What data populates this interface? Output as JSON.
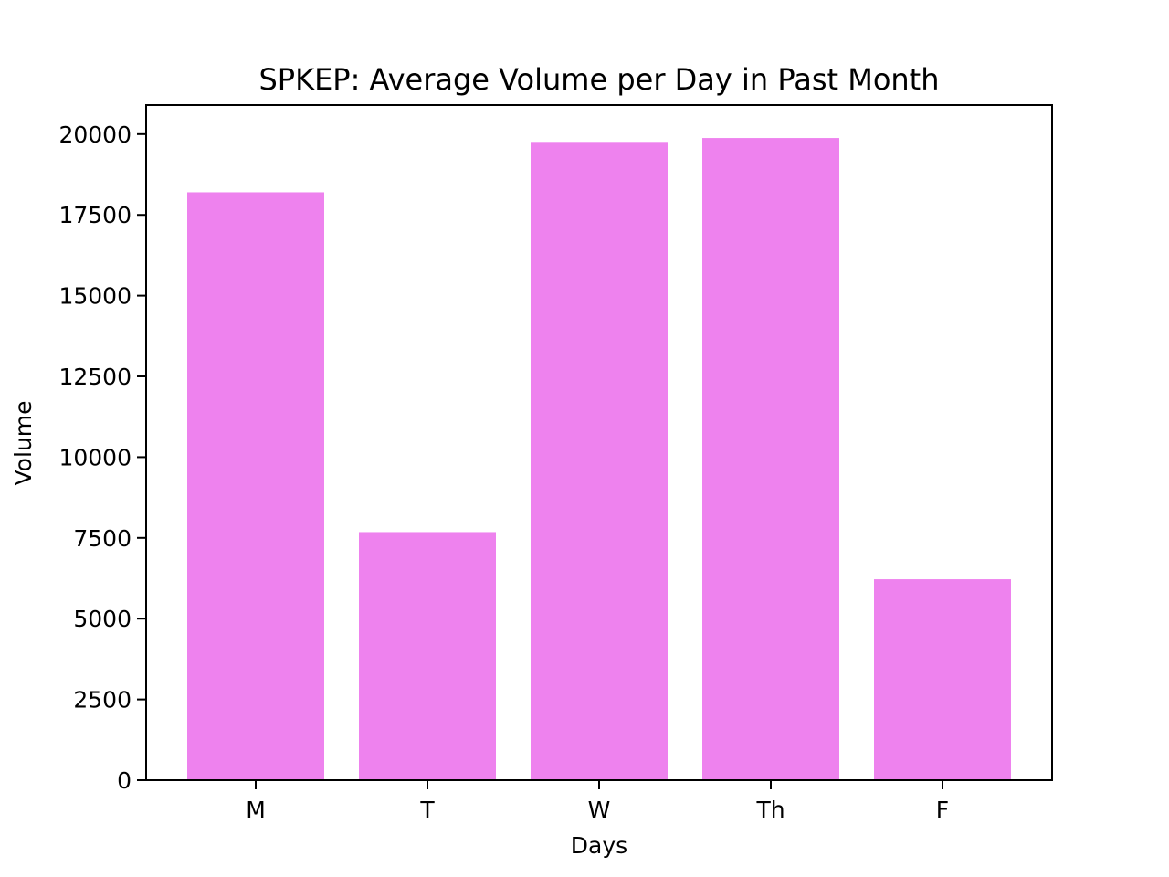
{
  "chart_data": {
    "type": "bar",
    "title": "SPKEP: Average Volume per Day in Past Month",
    "xlabel": "Days",
    "ylabel": "Volume",
    "categories": [
      "M",
      "T",
      "W",
      "Th",
      "F"
    ],
    "values": [
      18200,
      7680,
      19760,
      19880,
      6220
    ],
    "ylim": [
      0,
      20900
    ],
    "yticks": [
      0,
      2500,
      5000,
      7500,
      10000,
      12500,
      15000,
      17500,
      20000
    ],
    "bar_color": "#ee82ee",
    "grid": false,
    "legend": "none"
  }
}
